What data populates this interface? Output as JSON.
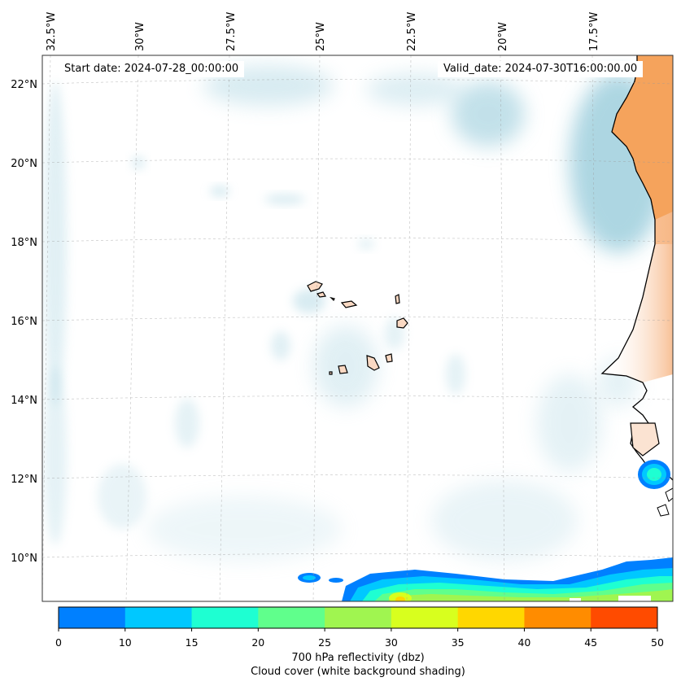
{
  "map": {
    "start_date": "Start date: 2024-07-28_00:00:00",
    "valid_date": "Valid_date: 2024-07-30T16:00:00.00",
    "lon_labels": [
      "32.5°W",
      "30°W",
      "27.5°W",
      "25°W",
      "22.5°W",
      "20°W",
      "17.5°W"
    ],
    "lat_labels": [
      "22°N",
      "20°N",
      "18°N",
      "16°N",
      "14°N",
      "12°N",
      "10°N"
    ],
    "colorbar": {
      "ticks": [
        "0",
        "10",
        "15",
        "20",
        "25",
        "30",
        "35",
        "40",
        "45",
        "50"
      ],
      "colors": [
        "#0080ff",
        "#00c8ff",
        "#1effd2",
        "#60ff8c",
        "#a0f550",
        "#d8ff1e",
        "#ffd700",
        "#ff8c00",
        "#ff4b00"
      ],
      "title_line1": "700 hPa reflectivity (dbz)",
      "title_line2": "Cloud cover (white background shading)"
    },
    "colors": {
      "ocean": "#ffffff",
      "cloud": "#a9d4e1",
      "land_warm": "#f5a35c",
      "land_light": "#fad9c3"
    }
  }
}
